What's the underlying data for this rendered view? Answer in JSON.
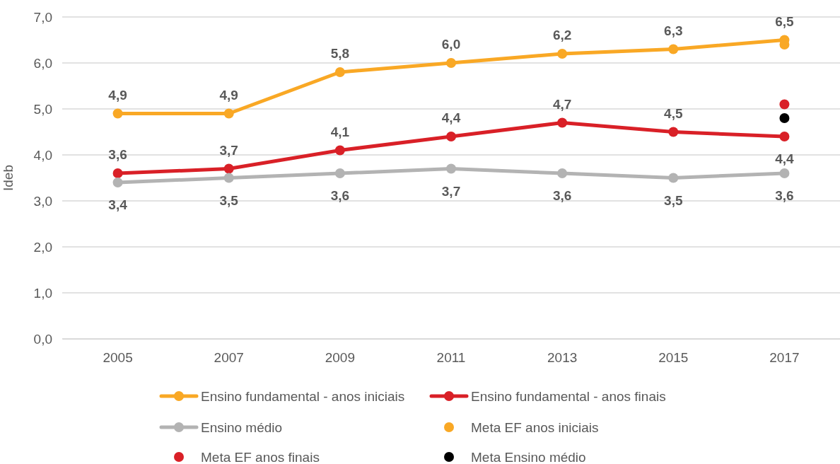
{
  "chart_data": {
    "type": "line",
    "ylabel": "Ideb",
    "categories": [
      "2005",
      "2007",
      "2009",
      "2011",
      "2013",
      "2015",
      "2017"
    ],
    "ylim": [
      0,
      7
    ],
    "yticks": [
      {
        "value": 0,
        "label": "0,0"
      },
      {
        "value": 1,
        "label": "1,0"
      },
      {
        "value": 2,
        "label": "2,0"
      },
      {
        "value": 3,
        "label": "3,0"
      },
      {
        "value": 4,
        "label": "4,0"
      },
      {
        "value": 5,
        "label": "5,0"
      },
      {
        "value": 6,
        "label": "6,0"
      },
      {
        "value": 7,
        "label": "7,0"
      }
    ],
    "grid": "y",
    "legend": "bottom",
    "marker": "circle",
    "line_style": "solid",
    "series": [
      {
        "name": "Ensino fundamental - anos iniciais",
        "color": "#f9a825",
        "values": [
          4.9,
          4.9,
          5.8,
          6.0,
          6.2,
          6.3,
          6.5
        ],
        "value_labels": [
          "4,9",
          "4,9",
          "5,8",
          "6,0",
          "6,2",
          "6,3",
          "6,5"
        ]
      },
      {
        "name": "Ensino fundamental - anos finais",
        "color": "#d92027",
        "values": [
          3.6,
          3.7,
          4.1,
          4.4,
          4.7,
          4.5,
          4.4
        ],
        "value_labels": [
          "3,6",
          "3,7",
          "4,1",
          "4,4",
          "4,7",
          "4,5",
          "4,4"
        ]
      },
      {
        "name": "Ensino médio",
        "color": "#b3b3b3",
        "values": [
          3.4,
          3.5,
          3.6,
          3.7,
          3.6,
          3.5,
          3.6
        ],
        "value_labels": [
          "3,4",
          "3,5",
          "3,6",
          "3,7",
          "3,6",
          "3,5",
          "3,6"
        ]
      },
      {
        "name": "Meta EF anos iniciais",
        "type": "scatter",
        "color": "#f9a825",
        "values": [
          null,
          null,
          null,
          null,
          null,
          null,
          6.4
        ]
      },
      {
        "name": "Meta EF anos finais",
        "type": "scatter",
        "color": "#d92027",
        "values": [
          null,
          null,
          null,
          null,
          null,
          null,
          5.1
        ]
      },
      {
        "name": "Meta Ensino médio",
        "type": "scatter",
        "color": "#000000",
        "values": [
          null,
          null,
          null,
          null,
          null,
          null,
          4.8
        ]
      }
    ]
  }
}
